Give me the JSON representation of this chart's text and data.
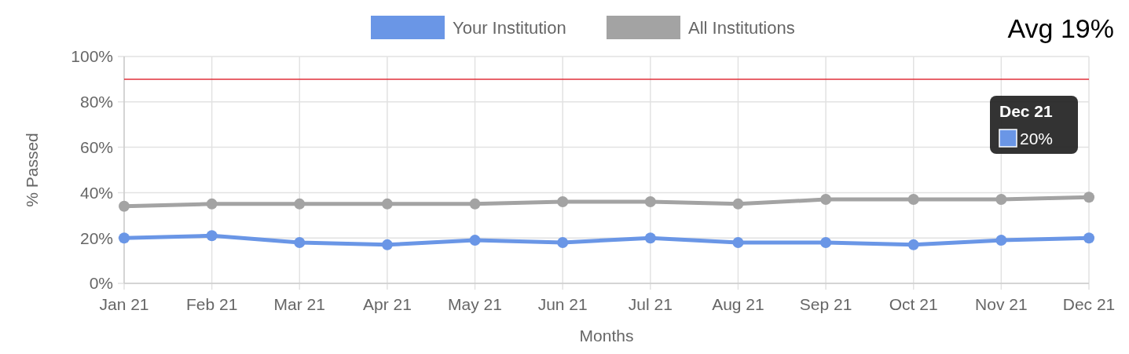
{
  "chart_data": {
    "type": "line",
    "xlabel": "Months",
    "ylabel": "% Passed",
    "categories": [
      "Jan 21",
      "Feb 21",
      "Mar 21",
      "Apr 21",
      "May 21",
      "Jun 21",
      "Jul 21",
      "Aug 21",
      "Sep 21",
      "Oct 21",
      "Nov 21",
      "Dec 21"
    ],
    "series": [
      {
        "name": "Your Institution",
        "color": "#6a96e6",
        "values": [
          20,
          21,
          18,
          17,
          19,
          18,
          20,
          18,
          18,
          17,
          19,
          20
        ]
      },
      {
        "name": "All Institutions",
        "color": "#a3a3a3",
        "values": [
          34,
          35,
          35,
          35,
          35,
          36,
          36,
          35,
          37,
          37,
          37,
          38
        ]
      }
    ],
    "ylim": [
      0,
      100
    ],
    "yticks": [
      {
        "value": 0,
        "label": "0%"
      },
      {
        "value": 20,
        "label": "20%"
      },
      {
        "value": 40,
        "label": "40%"
      },
      {
        "value": 60,
        "label": "60%"
      },
      {
        "value": 80,
        "label": "80%"
      },
      {
        "value": 100,
        "label": "100%"
      }
    ],
    "ref_lines": [
      {
        "axis": "y",
        "value": 90,
        "color": "#e0303a"
      }
    ],
    "annotations": [
      "Avg 19%",
      "Dec 21 20%"
    ],
    "grid": true,
    "legend": "top",
    "marker": "circle",
    "line_style": "solid"
  }
}
